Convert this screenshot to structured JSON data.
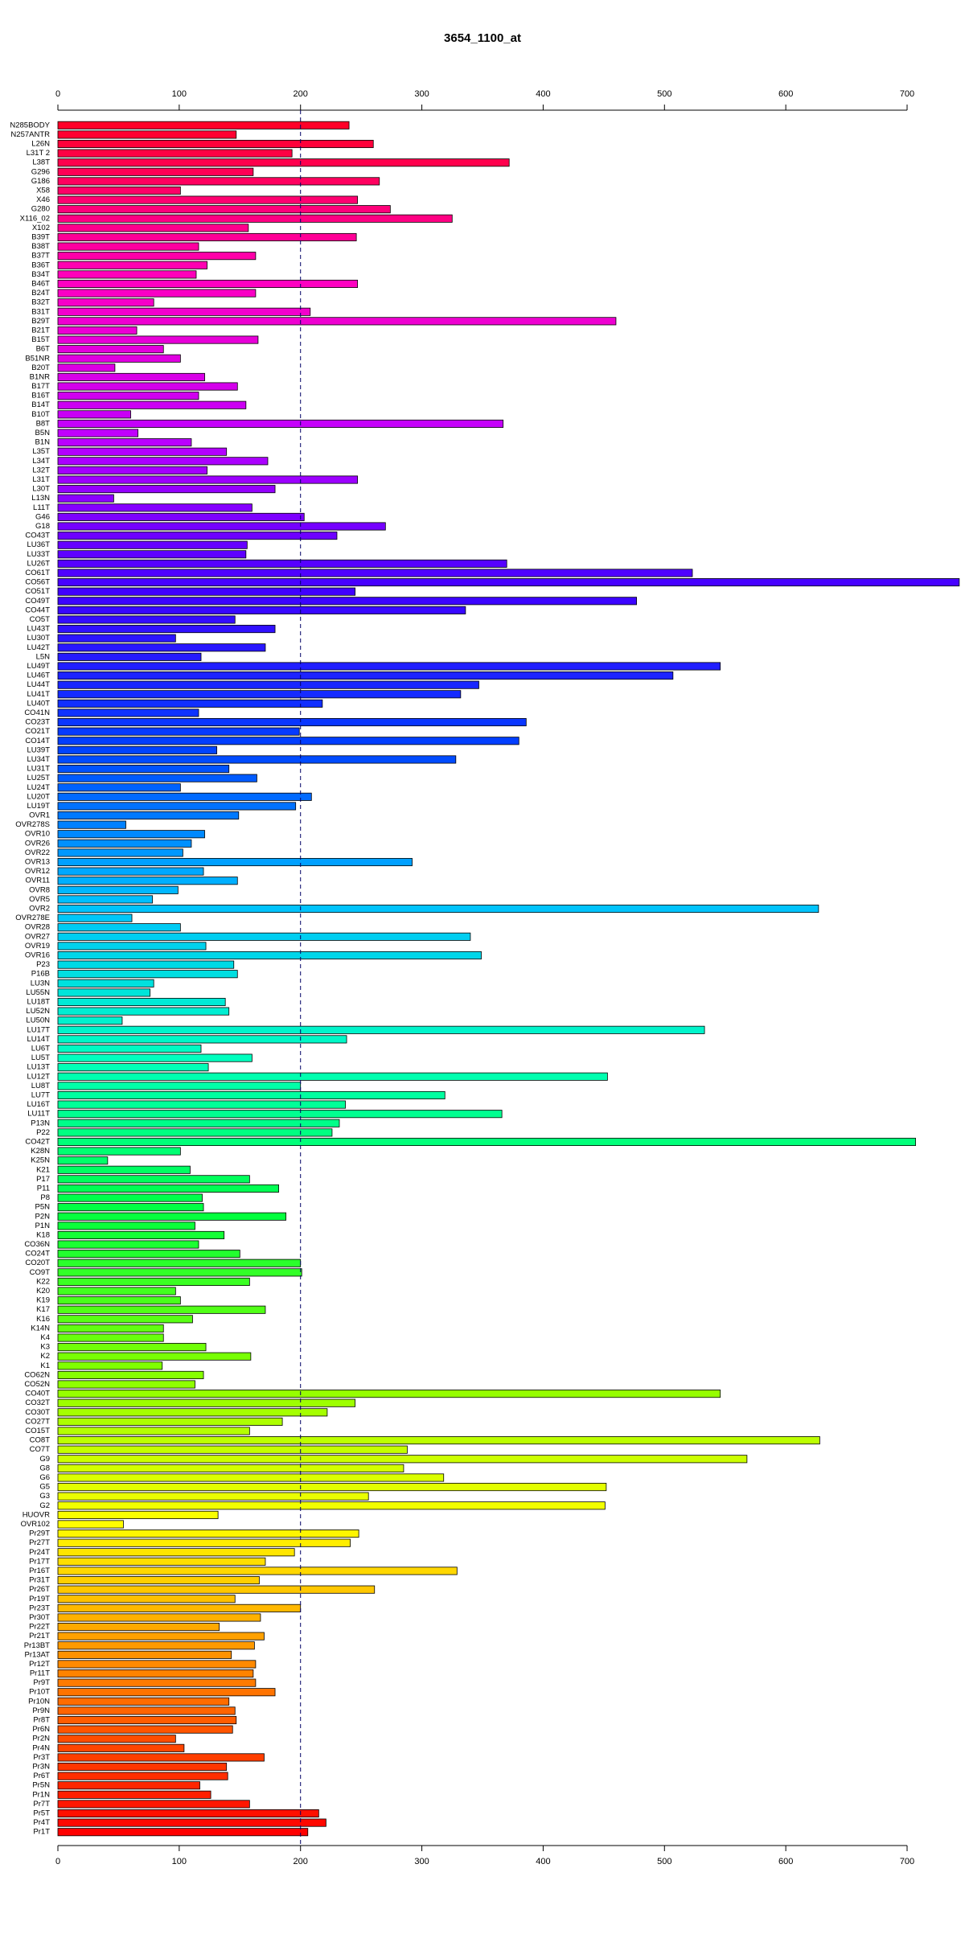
{
  "chart_data": {
    "type": "barh",
    "title": "3654_1100_at",
    "categories": [
      "N285BODY",
      "N257ANTR",
      "L26N",
      "L31T 2",
      "L38T",
      "G296",
      "G186",
      "X58",
      "X46",
      "G280",
      "X116_02",
      "X102",
      "B39T",
      "B38T",
      "B37T",
      "B36T",
      "B34T",
      "B46T",
      "B24T",
      "B32T",
      "B31T",
      "B29T",
      "B21T",
      "B15T",
      "B6T",
      "B51NR",
      "B20T",
      "B1NR",
      "B17T",
      "B16T",
      "B14T",
      "B10T",
      "B8T",
      "B5N",
      "B1N",
      "L35T",
      "L34T",
      "L32T",
      "L31T",
      "L30T",
      "L13N",
      "L11T",
      "G46",
      "G18",
      "CO43T",
      "LU36T",
      "LU33T",
      "LU26T",
      "CO61T",
      "CO56T",
      "CO51T",
      "CO49T",
      "CO44T",
      "CO5T",
      "LU43T",
      "LU30T",
      "LU42T",
      "L5N",
      "LU49T",
      "LU46T",
      "LU44T",
      "LU41T",
      "LU40T",
      "CO41N",
      "CO23T",
      "CO21T",
      "CO14T",
      "LU39T",
      "LU34T",
      "LU31T",
      "LU25T",
      "LU24T",
      "LU20T",
      "LU19T",
      "OVR1",
      "OVR278S",
      "OVR10",
      "OVR26",
      "OVR22",
      "OVR13",
      "OVR12",
      "OVR11",
      "OVR8",
      "OVR5",
      "OVR2",
      "OVR278E",
      "OVR28",
      "OVR27",
      "OVR19",
      "OVR16",
      "P23",
      "P16B",
      "LU3N",
      "LU55N",
      "LU18T",
      "LU52N",
      "LU50N",
      "LU17T",
      "LU14T",
      "LU6T",
      "LU5T",
      "LU13T",
      "LU12T",
      "LU8T",
      "LU7T",
      "LU16T",
      "LU11T",
      "P13N",
      "P22",
      "CO42T",
      "K28N",
      "K25N",
      "K21",
      "P17",
      "P11",
      "P8",
      "P5N",
      "P2N",
      "P1N",
      "K18",
      "CO36N",
      "CO24T",
      "CO20T",
      "CO9T",
      "K22",
      "K20",
      "K19",
      "K17",
      "K16",
      "K14N",
      "K4",
      "K3",
      "K2",
      "K1",
      "CO62N",
      "CO52N",
      "CO40T",
      "CO32T",
      "CO30T",
      "CO27T",
      "CO15T",
      "CO8T",
      "CO7T",
      "G9",
      "G8",
      "G6",
      "G5",
      "G3",
      "G2",
      "HUOVR",
      "OVR102",
      "Pr29T",
      "Pr27T",
      "Pr24T",
      "Pr17T",
      "Pr16T",
      "Pr31T",
      "Pr26T",
      "Pr19T",
      "Pr23T",
      "Pr30T",
      "Pr22T",
      "Pr21T",
      "Pr13BT",
      "Pr13AT",
      "Pr12T",
      "Pr11T",
      "Pr9T",
      "Pr10T",
      "Pr10N",
      "Pr9N",
      "Pr8T",
      "Pr6N",
      "Pr2N",
      "Pr4N",
      "Pr3T",
      "Pr3N",
      "Pr6T",
      "Pr5N",
      "Pr1N",
      "Pr7T",
      "Pr5T",
      "Pr4T",
      "Pr1T"
    ],
    "values": [
      240,
      147,
      260,
      193,
      372,
      161,
      265,
      101,
      247,
      274,
      325,
      157,
      246,
      116,
      163,
      123,
      114,
      247,
      163,
      79,
      208,
      460,
      65,
      165,
      87,
      101,
      47,
      121,
      148,
      116,
      155,
      60,
      367,
      66,
      110,
      139,
      173,
      123,
      247,
      179,
      46,
      160,
      203,
      270,
      230,
      156,
      155,
      370,
      523,
      743,
      245,
      477,
      336,
      146,
      179,
      97,
      171,
      118,
      546,
      507,
      347,
      332,
      218,
      116,
      386,
      199,
      380,
      131,
      328,
      141,
      164,
      101,
      209,
      196,
      149,
      56,
      121,
      110,
      103,
      292,
      120,
      148,
      99,
      78,
      627,
      61,
      101,
      340,
      122,
      349,
      145,
      148,
      79,
      76,
      138,
      141,
      53,
      533,
      238,
      118,
      160,
      124,
      453,
      200,
      319,
      237,
      366,
      232,
      226,
      707,
      101,
      41,
      109,
      158,
      182,
      119,
      120,
      188,
      113,
      137,
      116,
      150,
      200,
      201,
      158,
      97,
      101,
      171,
      111,
      87,
      87,
      122,
      159,
      86,
      120,
      113,
      546,
      245,
      222,
      185,
      158,
      628,
      288,
      568,
      285,
      318,
      452,
      256,
      451,
      132,
      54,
      248,
      241,
      195,
      171,
      329,
      166,
      261,
      146,
      200,
      167,
      133,
      170,
      162,
      143,
      163,
      161,
      163,
      179,
      141,
      146,
      147,
      144,
      97,
      104,
      170,
      139,
      140,
      117,
      126,
      158,
      215,
      221,
      206
    ],
    "colormap": [
      "#ff0028",
      "#ff00c0",
      "#c000ff",
      "#4000ff",
      "#0040ff",
      "#00c0ff",
      "#00ffc0",
      "#00ff40",
      "#80ff00",
      "#ffff00",
      "#ff8000",
      "#ff0000"
    ],
    "xlim": [
      0,
      700
    ],
    "xticks": [
      0,
      100,
      200,
      300,
      400,
      500,
      600,
      700
    ],
    "reference_line": 200
  }
}
